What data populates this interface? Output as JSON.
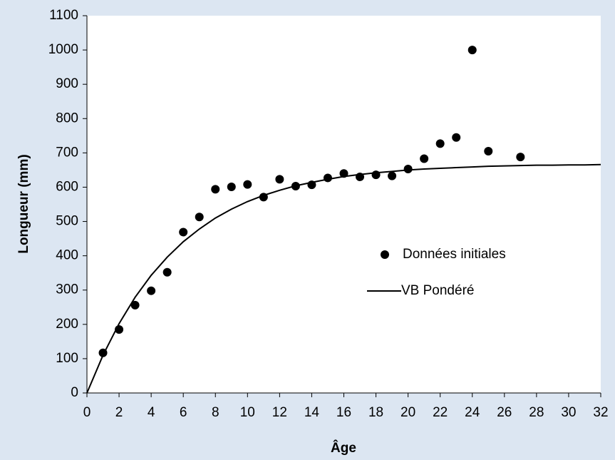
{
  "chart_data": {
    "type": "scatter",
    "xlabel": "Âge",
    "ylabel": "Longueur (mm)",
    "xlim": [
      0,
      32
    ],
    "xticks": [
      0,
      2,
      4,
      6,
      8,
      10,
      12,
      14,
      16,
      18,
      20,
      22,
      24,
      26,
      28,
      30,
      32
    ],
    "ylim": [
      0,
      1100
    ],
    "yticks": [
      0,
      100,
      200,
      300,
      400,
      500,
      600,
      700,
      800,
      900,
      1000,
      1100
    ],
    "grid": false,
    "legend": "right",
    "series": [
      {
        "name": "Données initiales",
        "type": "scatter",
        "color": "#000000",
        "x": [
          1,
          2,
          3,
          4,
          5,
          6,
          7,
          8,
          9,
          10,
          11,
          12,
          13,
          14,
          15,
          16,
          17,
          18,
          19,
          20,
          21,
          22,
          23,
          24,
          25,
          27
        ],
        "values": [
          117,
          185,
          256,
          298,
          352,
          469,
          513,
          594,
          601,
          608,
          571,
          623,
          603,
          607,
          627,
          640,
          630,
          636,
          633,
          653,
          683,
          727,
          745,
          1000,
          705,
          688
        ]
      },
      {
        "name": "VB Pondéré",
        "type": "line",
        "color": "#000000",
        "x": [
          0,
          1,
          2,
          3,
          4,
          5,
          6,
          7,
          8,
          9,
          10,
          11,
          12,
          13,
          14,
          15,
          16,
          17,
          18,
          19,
          20,
          21,
          22,
          23,
          24,
          25,
          26,
          27,
          28,
          29,
          30,
          31,
          32
        ],
        "values": [
          0,
          110,
          202,
          279,
          343,
          396,
          441,
          478,
          510,
          536,
          558,
          576,
          591,
          604,
          614,
          623,
          631,
          637,
          642,
          646,
          650,
          653,
          655,
          657,
          659,
          661,
          662,
          663,
          664,
          664,
          665,
          665,
          666
        ]
      }
    ]
  }
}
